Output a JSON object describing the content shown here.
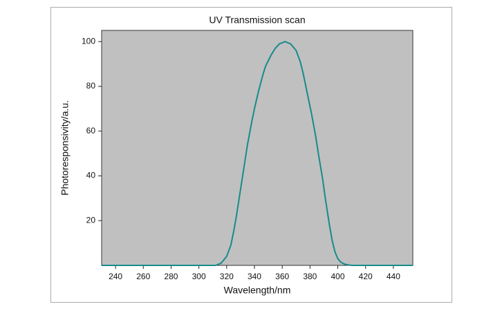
{
  "chart_data": {
    "type": "line",
    "title": "UV Transmission scan",
    "xlabel": "Wavelength/nm",
    "ylabel": "Photoresponsivity/a.u.",
    "x": [
      230,
      250,
      270,
      290,
      305,
      312,
      316,
      320,
      323,
      325,
      327,
      329,
      332,
      335,
      338,
      340,
      343,
      346,
      348,
      352,
      355,
      358,
      362,
      366,
      370,
      373,
      375,
      377,
      379,
      381,
      384,
      386,
      389,
      391,
      394,
      396,
      398,
      400,
      402,
      405,
      410,
      430,
      454
    ],
    "series": [
      {
        "name": "Photoresponsivity",
        "color": "#178a8a",
        "values": [
          0,
          0,
          0,
          0,
          0,
          0,
          1,
          4,
          9,
          15,
          22,
          30,
          42,
          54,
          64,
          70,
          78,
          85,
          89,
          94,
          97,
          99,
          100,
          99,
          96,
          91,
          86,
          80,
          74,
          68,
          58,
          50,
          39,
          30,
          18,
          11,
          6,
          3,
          1.5,
          0.5,
          0,
          0,
          0
        ]
      }
    ],
    "xlim": [
      230,
      454
    ],
    "ylim": [
      0,
      105
    ],
    "xticks": [
      240,
      260,
      280,
      300,
      320,
      340,
      360,
      380,
      400,
      420,
      440
    ],
    "yticks": [
      20,
      40,
      60,
      80,
      100
    ],
    "plot_background": "#c0c0c0"
  }
}
